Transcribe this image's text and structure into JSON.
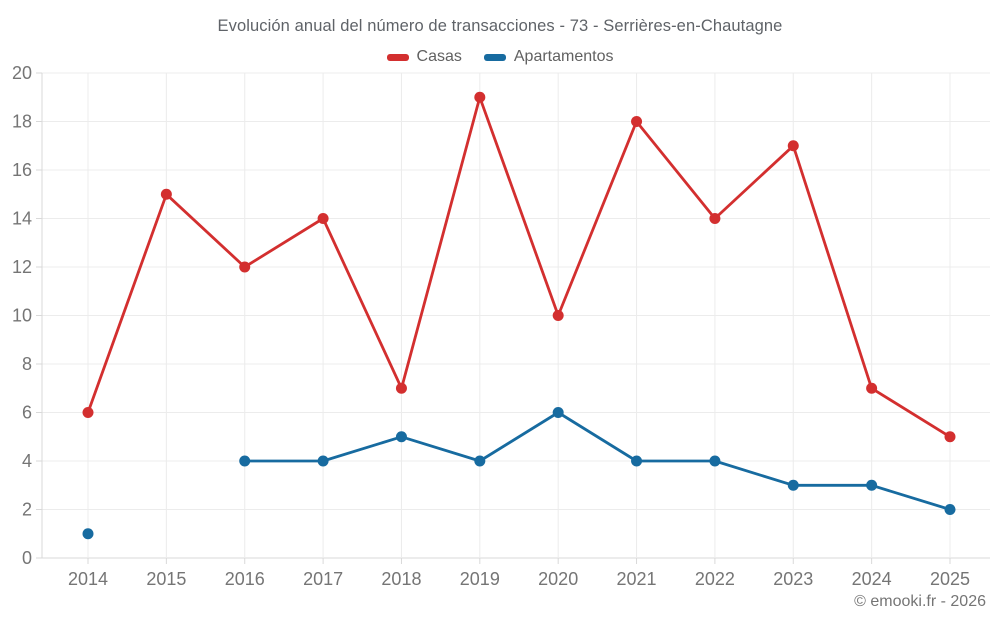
{
  "title": "Evolución anual del número de transacciones - 73 - Serrières-en-Chautagne",
  "copyright": "© emooki.fr - 2026",
  "colors": {
    "grid": "#ececec",
    "axis": "#d9d9d9",
    "tick_text": "#757575",
    "title_text": "#5f6368",
    "legend_text": "#616161",
    "casas_red": "#d32f2f",
    "apartamentos_blue": "#176ba0",
    "background": "#ffffff"
  },
  "chart_data": {
    "type": "line",
    "title": "Evolución anual del número de transacciones - 73 - Serrières-en-Chautagne",
    "x": [
      2014,
      2015,
      2016,
      2017,
      2018,
      2019,
      2020,
      2021,
      2022,
      2023,
      2024,
      2025
    ],
    "series": [
      {
        "name": "Casas",
        "color": "#d32f2f",
        "values": [
          6,
          15,
          12,
          14,
          7,
          19,
          10,
          18,
          14,
          17,
          7,
          5
        ]
      },
      {
        "name": "Apartamentos",
        "color": "#176ba0",
        "values": [
          1,
          null,
          4,
          4,
          5,
          4,
          6,
          4,
          4,
          3,
          3,
          2
        ]
      }
    ],
    "xlabel": "",
    "ylabel": "",
    "ylim": [
      0,
      20
    ],
    "ytick_step": 2,
    "yticks": [
      0,
      2,
      4,
      6,
      8,
      10,
      12,
      14,
      16,
      18,
      20
    ],
    "grid": true,
    "legend_position": "top",
    "point_style": "circle",
    "annotations": []
  }
}
